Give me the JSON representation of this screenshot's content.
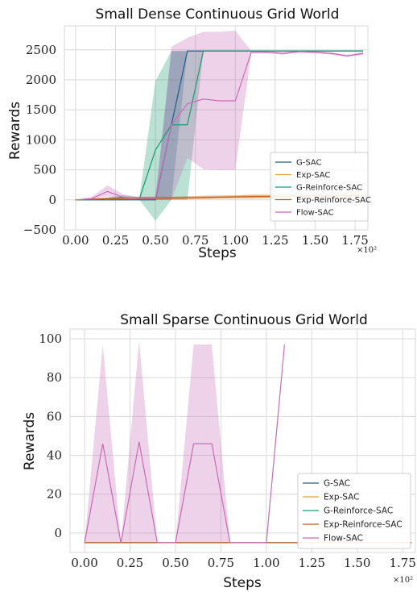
{
  "chart_data": [
    {
      "type": "line",
      "title": "Small Dense Continuous Grid World",
      "xlabel": "Steps",
      "ylabel": "Rewards",
      "x_multiplier": "×10²",
      "xlim": [
        -0.07,
        1.83
      ],
      "ylim": [
        -500,
        2900
      ],
      "xticks": [
        "0.00",
        "0.25",
        "0.50",
        "0.75",
        "1.00",
        "1.25",
        "1.50",
        "1.75"
      ],
      "xtick_values": [
        0,
        0.25,
        0.5,
        0.75,
        1.0,
        1.25,
        1.5,
        1.75
      ],
      "yticks": [
        "−500",
        "0",
        "500",
        "1000",
        "1500",
        "2000",
        "2500"
      ],
      "ytick_values": [
        -500,
        0,
        500,
        1000,
        1500,
        2000,
        2500
      ],
      "grid": true,
      "legend_position": "lower-right",
      "series": [
        {
          "name": "G-SAC",
          "color": "#1f5f8b",
          "x": [
            0,
            0.1,
            0.2,
            0.3,
            0.4,
            0.5,
            0.6,
            0.7,
            0.8,
            0.9,
            1.0,
            1.1,
            1.2,
            1.3,
            1.4,
            1.5,
            1.6,
            1.7,
            1.8
          ],
          "y": [
            0,
            0,
            0,
            0,
            0,
            0,
            1250,
            2480,
            2480,
            2480,
            2480,
            2480,
            2480,
            2480,
            2480,
            2480,
            2480,
            2480,
            2480
          ],
          "band_low": [
            0,
            0,
            0,
            0,
            0,
            0,
            0,
            2480,
            2480,
            2480,
            2480,
            2480,
            2480,
            2480,
            2480,
            2480,
            2480,
            2480,
            2480
          ],
          "band_high": [
            0,
            0,
            0,
            0,
            0,
            0,
            2480,
            2480,
            2480,
            2480,
            2480,
            2480,
            2480,
            2480,
            2480,
            2480,
            2480,
            2480,
            2480
          ]
        },
        {
          "name": "Exp-SAC",
          "color": "#e8a23a",
          "x": [
            0,
            0.1,
            0.2,
            0.3,
            0.4,
            0.5,
            0.6,
            0.7,
            0.8,
            0.9,
            1.0,
            1.1,
            1.2,
            1.3,
            1.4,
            1.5,
            1.6,
            1.7,
            1.8
          ],
          "y": [
            0,
            10,
            15,
            20,
            25,
            30,
            30,
            35,
            40,
            45,
            50,
            55,
            60,
            65,
            70,
            75,
            80,
            85,
            90
          ],
          "band_low": [
            0,
            0,
            0,
            0,
            5,
            5,
            5,
            10,
            10,
            15,
            20,
            20,
            25,
            25,
            30,
            30,
            35,
            35,
            40
          ],
          "band_high": [
            0,
            20,
            30,
            40,
            45,
            55,
            55,
            60,
            70,
            75,
            80,
            90,
            95,
            100,
            110,
            115,
            120,
            130,
            140
          ]
        },
        {
          "name": "G-Reinforce-SAC",
          "color": "#1a9a72",
          "x": [
            0,
            0.1,
            0.2,
            0.3,
            0.4,
            0.5,
            0.6,
            0.7,
            0.8,
            0.9,
            1.0,
            1.1,
            1.2,
            1.3,
            1.4,
            1.5,
            1.6,
            1.7,
            1.8
          ],
          "y": [
            0,
            0,
            20,
            40,
            20,
            830,
            1250,
            1250,
            2480,
            2480,
            2480,
            2480,
            2480,
            2480,
            2480,
            2480,
            2480,
            2480,
            2480
          ],
          "band_low": [
            0,
            0,
            0,
            0,
            0,
            -350,
            0,
            0,
            2480,
            2480,
            2480,
            2480,
            2480,
            2480,
            2480,
            2480,
            2480,
            2480,
            2480
          ],
          "band_high": [
            0,
            0,
            40,
            80,
            40,
            1980,
            2480,
            2480,
            2480,
            2480,
            2480,
            2480,
            2480,
            2480,
            2480,
            2480,
            2480,
            2480,
            2480
          ]
        },
        {
          "name": "Exp-Reinforce-SAC",
          "color": "#c15a1c",
          "x": [
            0,
            0.1,
            0.2,
            0.3,
            0.4,
            0.5,
            0.6,
            0.7,
            0.8,
            0.9,
            1.0,
            1.1,
            1.2,
            1.3,
            1.4,
            1.5,
            1.6,
            1.7,
            1.8
          ],
          "y": [
            0,
            10,
            20,
            25,
            30,
            30,
            30,
            35,
            40,
            45,
            50,
            55,
            55,
            60,
            60,
            65,
            65,
            70,
            70
          ],
          "band_low": [
            0,
            0,
            0,
            0,
            5,
            5,
            10,
            10,
            15,
            20,
            25,
            25,
            30,
            30,
            35,
            35,
            40,
            40,
            45
          ],
          "band_high": [
            0,
            20,
            40,
            50,
            55,
            55,
            55,
            60,
            65,
            70,
            75,
            85,
            80,
            90,
            85,
            95,
            90,
            100,
            95
          ]
        },
        {
          "name": "Flow-SAC",
          "color": "#c76bb6",
          "x": [
            0,
            0.1,
            0.2,
            0.3,
            0.4,
            0.5,
            0.6,
            0.7,
            0.8,
            0.9,
            1.0,
            1.1,
            1.2,
            1.3,
            1.4,
            1.5,
            1.6,
            1.7,
            1.8
          ],
          "y": [
            0,
            20,
            140,
            40,
            20,
            20,
            1250,
            1600,
            1680,
            1650,
            1650,
            2460,
            2460,
            2440,
            2470,
            2460,
            2440,
            2400,
            2440
          ],
          "band_low": [
            0,
            0,
            60,
            0,
            0,
            0,
            0,
            700,
            510,
            500,
            500,
            2440,
            2440,
            2420,
            2450,
            2440,
            2420,
            2380,
            2420
          ],
          "band_high": [
            0,
            50,
            240,
            90,
            50,
            50,
            2550,
            2700,
            2800,
            2800,
            2820,
            2480,
            2480,
            2460,
            2490,
            2480,
            2460,
            2420,
            2460
          ]
        }
      ]
    },
    {
      "type": "line",
      "title": "Small Sparse Continuous Grid World",
      "xlabel": "Steps",
      "ylabel": "Rewards",
      "x_multiplier": "×10²",
      "xlim": [
        -0.08,
        1.82
      ],
      "ylim": [
        -10,
        105
      ],
      "xticks": [
        "0.00",
        "0.25",
        "0.50",
        "0.75",
        "1.00",
        "1.25",
        "1.50",
        "1.75"
      ],
      "xtick_values": [
        0,
        0.25,
        0.5,
        0.75,
        1.0,
        1.25,
        1.5,
        1.75
      ],
      "yticks": [
        "0",
        "20",
        "40",
        "60",
        "80",
        "100"
      ],
      "ytick_values": [
        0,
        20,
        40,
        60,
        80,
        100
      ],
      "grid": true,
      "legend_position": "lower-right",
      "series": [
        {
          "name": "G-SAC",
          "color": "#1f5f8b",
          "x": [
            0,
            1.8
          ],
          "y": [
            -5,
            -5
          ],
          "band_low": [
            -5,
            -5
          ],
          "band_high": [
            -5,
            -5
          ]
        },
        {
          "name": "Exp-SAC",
          "color": "#e8a23a",
          "x": [
            0,
            1.8
          ],
          "y": [
            -5,
            -5
          ],
          "band_low": [
            -5,
            -5
          ],
          "band_high": [
            -5,
            -5
          ]
        },
        {
          "name": "G-Reinforce-SAC",
          "color": "#1a9a72",
          "x": [
            0,
            1.8
          ],
          "y": [
            -5,
            -5
          ],
          "band_low": [
            -5,
            -5
          ],
          "band_high": [
            -5,
            -5
          ]
        },
        {
          "name": "Exp-Reinforce-SAC",
          "color": "#c15a1c",
          "x": [
            0,
            1.8
          ],
          "y": [
            -5,
            -5
          ],
          "band_low": [
            -5,
            -5
          ],
          "band_high": [
            -5,
            -5
          ]
        },
        {
          "name": "Flow-SAC",
          "color": "#c76bb6",
          "x": [
            0,
            0.1,
            0.2,
            0.3,
            0.4,
            0.5,
            0.6,
            0.7,
            0.8,
            0.9,
            1.0,
            1.1
          ],
          "y": [
            -5,
            46,
            -5,
            47,
            -5,
            -5,
            46,
            46,
            -5,
            -5,
            -5,
            97
          ],
          "band_low": [
            -5,
            -5,
            -5,
            -5,
            -5,
            -5,
            -5,
            -5,
            -5,
            -5,
            -5,
            97
          ],
          "band_high": [
            -5,
            97,
            -5,
            99,
            -5,
            -5,
            97,
            97,
            -5,
            -5,
            -5,
            97
          ]
        }
      ]
    }
  ]
}
